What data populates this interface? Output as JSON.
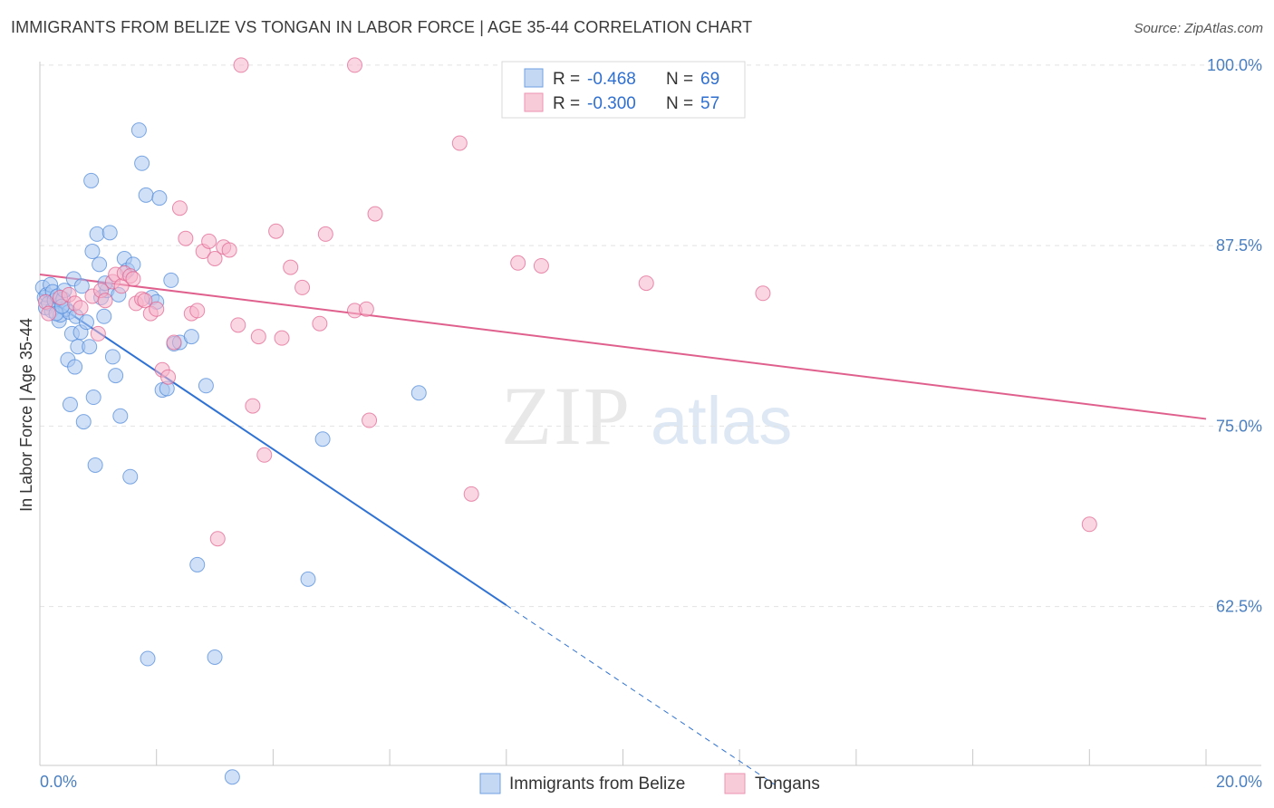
{
  "header": {
    "title": "IMMIGRANTS FROM BELIZE VS TONGAN IN LABOR FORCE | AGE 35-44 CORRELATION CHART",
    "source": "Source: ZipAtlas.com"
  },
  "watermark": {
    "zip": "ZIP",
    "atlas": "atlas"
  },
  "colors": {
    "blue": "#4a86d8",
    "blue_fill": "#a9c6f0",
    "pink": "#e0608d",
    "pink_fill": "#f5b5ca",
    "tick_text": "#4a7fc1",
    "grid": "#e2e2e2"
  },
  "legend": {
    "rows": [
      {
        "r_label": "R =",
        "r_value": "-0.468",
        "n_label": "N =",
        "n_value": "69"
      },
      {
        "r_label": "R =",
        "r_value": "-0.300",
        "n_label": "N =",
        "n_value": "57"
      }
    ]
  },
  "bottom_legend": {
    "items": [
      "Immigrants from Belize",
      "Tongans"
    ]
  },
  "chart_data": {
    "type": "scatter",
    "title": "IMMIGRANTS FROM BELIZE VS TONGAN IN LABOR FORCE | AGE 35-44 CORRELATION CHART",
    "xlabel": "",
    "ylabel": "In Labor Force | Age 35-44",
    "xlim": [
      0,
      20
    ],
    "ylim": [
      51.5,
      101.5
    ],
    "x_tick_labels": {
      "min": "0.0%",
      "max": "20.0%"
    },
    "y_ticks": [
      {
        "value": 100.0,
        "label": "100.0%"
      },
      {
        "value": 87.5,
        "label": "87.5%"
      },
      {
        "value": 75.0,
        "label": "75.0%"
      },
      {
        "value": 62.5,
        "label": "62.5%"
      }
    ],
    "series": [
      {
        "name": "Immigrants from Belize",
        "color": "blue",
        "R": -0.468,
        "N": 69,
        "trend": {
          "x0": 0.0,
          "y0": 84.2,
          "x1": 8.0,
          "y1": 62.6,
          "dash_to_x": 12.6
        },
        "points": [
          [
            0.05,
            84.6
          ],
          [
            0.08,
            83.9
          ],
          [
            0.1,
            83.2
          ],
          [
            0.12,
            84.1
          ],
          [
            0.15,
            83.5
          ],
          [
            0.18,
            84.8
          ],
          [
            0.2,
            83.0
          ],
          [
            0.22,
            84.3
          ],
          [
            0.25,
            83.7
          ],
          [
            0.3,
            84.0
          ],
          [
            0.33,
            82.3
          ],
          [
            0.35,
            82.7
          ],
          [
            0.4,
            83.8
          ],
          [
            0.42,
            84.4
          ],
          [
            0.45,
            83.1
          ],
          [
            0.5,
            82.9
          ],
          [
            0.55,
            81.4
          ],
          [
            0.58,
            85.2
          ],
          [
            0.62,
            82.6
          ],
          [
            0.65,
            80.5
          ],
          [
            0.7,
            81.5
          ],
          [
            0.72,
            84.7
          ],
          [
            0.8,
            82.2
          ],
          [
            0.85,
            80.5
          ],
          [
            0.9,
            87.1
          ],
          [
            0.92,
            77.0
          ],
          [
            0.95,
            72.3
          ],
          [
            0.98,
            88.3
          ],
          [
            1.05,
            83.9
          ],
          [
            1.1,
            82.6
          ],
          [
            1.15,
            84.4
          ],
          [
            1.2,
            88.4
          ],
          [
            1.25,
            79.8
          ],
          [
            1.3,
            78.5
          ],
          [
            1.35,
            84.1
          ],
          [
            1.38,
            75.7
          ],
          [
            1.45,
            86.6
          ],
          [
            1.5,
            85.8
          ],
          [
            1.55,
            71.5
          ],
          [
            1.6,
            86.2
          ],
          [
            1.7,
            95.5
          ],
          [
            1.75,
            93.2
          ],
          [
            1.82,
            91.0
          ],
          [
            1.92,
            83.9
          ],
          [
            2.0,
            83.6
          ],
          [
            2.05,
            90.8
          ],
          [
            2.1,
            77.5
          ],
          [
            2.18,
            77.6
          ],
          [
            2.25,
            85.1
          ],
          [
            2.3,
            80.7
          ],
          [
            2.4,
            80.8
          ],
          [
            2.6,
            81.2
          ],
          [
            2.7,
            65.4
          ],
          [
            2.85,
            77.8
          ],
          [
            3.0,
            59.0
          ],
          [
            3.3,
            50.7
          ],
          [
            4.6,
            64.4
          ],
          [
            4.85,
            74.1
          ],
          [
            6.5,
            77.3
          ],
          [
            0.28,
            82.8
          ],
          [
            0.38,
            83.3
          ],
          [
            0.48,
            79.6
          ],
          [
            0.52,
            76.5
          ],
          [
            0.6,
            79.1
          ],
          [
            0.75,
            75.3
          ],
          [
            0.88,
            92.0
          ],
          [
            1.02,
            86.2
          ],
          [
            1.12,
            84.9
          ],
          [
            1.85,
            58.9
          ]
        ]
      },
      {
        "name": "Tongans",
        "color": "pink",
        "R": -0.3,
        "N": 57,
        "trend": {
          "x0": 0.0,
          "y0": 85.5,
          "x1": 20.0,
          "y1": 75.5
        },
        "points": [
          [
            0.1,
            83.6
          ],
          [
            0.15,
            82.8
          ],
          [
            0.35,
            83.9
          ],
          [
            0.5,
            84.1
          ],
          [
            0.6,
            83.5
          ],
          [
            0.7,
            83.2
          ],
          [
            0.9,
            84.0
          ],
          [
            1.0,
            81.4
          ],
          [
            1.05,
            84.4
          ],
          [
            1.12,
            83.7
          ],
          [
            1.25,
            85.0
          ],
          [
            1.3,
            85.5
          ],
          [
            1.4,
            84.7
          ],
          [
            1.45,
            85.6
          ],
          [
            1.55,
            85.4
          ],
          [
            1.6,
            85.2
          ],
          [
            1.65,
            83.5
          ],
          [
            1.75,
            83.8
          ],
          [
            1.8,
            83.7
          ],
          [
            1.9,
            82.8
          ],
          [
            2.0,
            83.1
          ],
          [
            2.1,
            78.9
          ],
          [
            2.2,
            78.4
          ],
          [
            2.3,
            80.8
          ],
          [
            2.4,
            90.1
          ],
          [
            2.5,
            88.0
          ],
          [
            2.6,
            82.8
          ],
          [
            2.7,
            83.0
          ],
          [
            2.8,
            87.1
          ],
          [
            2.9,
            87.8
          ],
          [
            3.0,
            86.6
          ],
          [
            3.05,
            67.2
          ],
          [
            3.15,
            87.4
          ],
          [
            3.25,
            87.2
          ],
          [
            3.4,
            82.0
          ],
          [
            3.45,
            100.0
          ],
          [
            3.65,
            76.4
          ],
          [
            3.75,
            81.2
          ],
          [
            3.85,
            73.0
          ],
          [
            4.05,
            88.5
          ],
          [
            4.15,
            81.1
          ],
          [
            4.3,
            86.0
          ],
          [
            4.5,
            84.6
          ],
          [
            4.8,
            82.1
          ],
          [
            4.9,
            88.3
          ],
          [
            5.4,
            100.0
          ],
          [
            5.4,
            83.0
          ],
          [
            5.6,
            83.1
          ],
          [
            5.65,
            75.4
          ],
          [
            5.75,
            89.7
          ],
          [
            7.2,
            94.6
          ],
          [
            7.4,
            70.3
          ],
          [
            8.2,
            86.3
          ],
          [
            8.6,
            86.1
          ],
          [
            10.4,
            84.9
          ],
          [
            12.4,
            84.2
          ],
          [
            18.0,
            68.2
          ]
        ]
      }
    ]
  }
}
